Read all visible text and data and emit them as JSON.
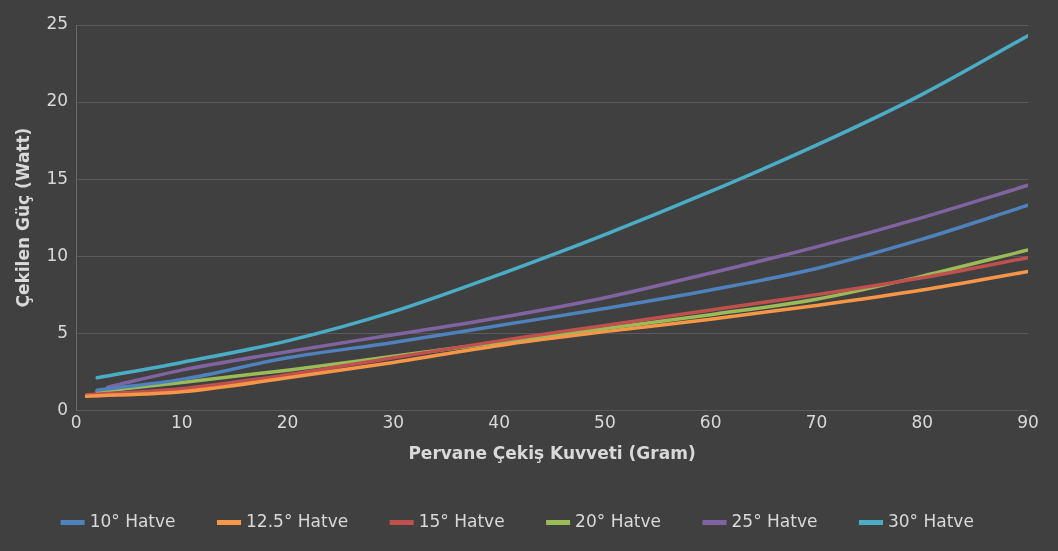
{
  "chart_data": {
    "type": "line",
    "xlabel": "Pervane Çekiş Kuvveti (Gram)",
    "ylabel": "Çekilen Güç (Watt)",
    "xlim": [
      0,
      90
    ],
    "xticks": [
      0,
      10,
      20,
      30,
      40,
      50,
      60,
      70,
      80,
      90
    ],
    "ylim": [
      0,
      25
    ],
    "yticks": [
      0,
      5,
      10,
      15,
      20,
      25
    ],
    "grid": "y",
    "legend": "bottom",
    "marker": "none",
    "line_style": "solid",
    "series": [
      {
        "name": "10° Hatve",
        "color": "#4f81bd",
        "x": [
          2,
          10,
          20,
          30,
          40,
          50,
          60,
          70,
          80,
          90
        ],
        "values": [
          1.3,
          2.0,
          3.4,
          4.4,
          5.5,
          6.6,
          7.8,
          9.2,
          11.1,
          13.3
        ]
      },
      {
        "name": "12.5° Hatve",
        "color": "#f79646",
        "x": [
          1,
          10,
          20,
          30,
          40,
          50,
          60,
          70,
          80,
          90
        ],
        "values": [
          0.9,
          1.2,
          2.1,
          3.1,
          4.2,
          5.1,
          5.9,
          6.8,
          7.8,
          9.0
        ]
      },
      {
        "name": "15° Hatve",
        "color": "#c0504d",
        "x": [
          1,
          10,
          20,
          30,
          40,
          50,
          60,
          70,
          80,
          90
        ],
        "values": [
          1.0,
          1.4,
          2.3,
          3.4,
          4.5,
          5.5,
          6.5,
          7.5,
          8.6,
          9.9
        ]
      },
      {
        "name": "20° Hatve",
        "color": "#9bbb59",
        "x": [
          2,
          10,
          20,
          30,
          40,
          50,
          60,
          70,
          80,
          90
        ],
        "values": [
          1.2,
          1.8,
          2.6,
          3.5,
          4.4,
          5.3,
          6.2,
          7.2,
          8.7,
          10.4
        ]
      },
      {
        "name": "25° Hatve",
        "color": "#8064a2",
        "x": [
          3,
          10,
          20,
          30,
          40,
          50,
          60,
          70,
          80,
          90
        ],
        "values": [
          1.5,
          2.6,
          3.8,
          4.9,
          6.0,
          7.3,
          8.9,
          10.6,
          12.5,
          14.6
        ]
      },
      {
        "name": "30° Hatve",
        "color": "#4bacc6",
        "x": [
          2,
          10,
          20,
          30,
          40,
          50,
          60,
          70,
          80,
          90
        ],
        "values": [
          2.1,
          3.1,
          4.5,
          6.4,
          8.8,
          11.4,
          14.2,
          17.2,
          20.5,
          24.3
        ]
      }
    ]
  }
}
